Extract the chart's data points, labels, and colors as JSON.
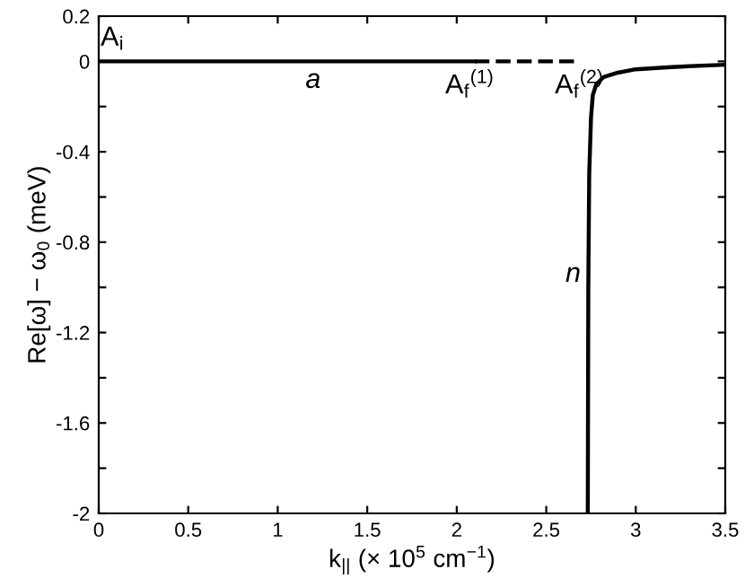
{
  "chart_data": {
    "type": "line",
    "xlabel": "k$_{||}$ (× 10$^{5}$ cm$^{−1}$)",
    "ylabel": "Re[ω] − ω$_{0}$ (meV)",
    "xlim": [
      0,
      3.5
    ],
    "ylim": [
      -2,
      0.2
    ],
    "xticks": [
      0,
      0.5,
      1,
      1.5,
      2,
      2.5,
      3,
      3.5
    ],
    "yticks": [
      0.2,
      0,
      {
        "value": -0.2,
        "label": null
      },
      -0.4,
      {
        "value": -0.6,
        "label": null
      },
      -0.8,
      {
        "value": -1.0,
        "label": null
      },
      -1.2,
      {
        "value": -1.4,
        "label": null
      },
      -1.6,
      {
        "value": -1.8,
        "label": null
      },
      -2
    ],
    "grid": false,
    "legend": false,
    "marker": "none",
    "series": [
      {
        "color": "#000000",
        "line_style": "solid",
        "x": [
          0,
          2.1
        ],
        "values": [
          0,
          0
        ]
      },
      {
        "color": "#000000",
        "line_style": "dashed",
        "x": [
          2.1,
          2.66
        ],
        "values": [
          0,
          0
        ]
      },
      {
        "color": "#000000",
        "line_style": "solid",
        "x": [
          2.732,
          2.735,
          2.74,
          2.75,
          2.76,
          2.78,
          2.82,
          2.9,
          3.0,
          3.2,
          3.5
        ],
        "values": [
          -2,
          -1.0,
          -0.5,
          -0.25,
          -0.15,
          -0.1,
          -0.07,
          -0.05,
          -0.035,
          -0.025,
          -0.015
        ]
      }
    ],
    "annotations": [
      "A$_{i}$",
      "a",
      "A$_{f}$$^{(1)}$",
      "A$_{f}$$^{(2)}$",
      "n"
    ]
  }
}
